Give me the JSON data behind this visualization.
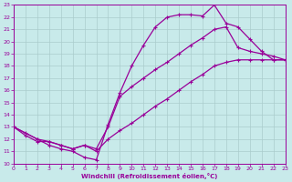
{
  "xlabel": "Windchill (Refroidissement éolien,°C)",
  "bg_color": "#c8eaea",
  "line_color": "#990099",
  "grid_color": "#aacccc",
  "xlim": [
    0,
    23
  ],
  "ylim": [
    10,
    23
  ],
  "xticks": [
    0,
    1,
    2,
    3,
    4,
    5,
    6,
    7,
    8,
    9,
    10,
    11,
    12,
    13,
    14,
    15,
    16,
    17,
    18,
    19,
    20,
    21,
    22,
    23
  ],
  "yticks": [
    10,
    11,
    12,
    13,
    14,
    15,
    16,
    17,
    18,
    19,
    20,
    21,
    22,
    23
  ],
  "curve1_x": [
    0,
    1,
    2,
    3,
    4,
    5,
    6,
    7,
    8,
    9,
    10,
    11,
    12,
    13,
    14,
    15,
    16,
    17,
    18,
    19,
    20,
    21,
    22,
    23
  ],
  "curve1_y": [
    13.0,
    12.5,
    12.0,
    11.5,
    11.2,
    11.0,
    10.5,
    10.3,
    13.2,
    15.8,
    18.0,
    19.7,
    21.2,
    22.0,
    22.2,
    22.2,
    22.1,
    23.0,
    21.5,
    21.2,
    20.2,
    19.2,
    18.5,
    18.5
  ],
  "curve2_x": [
    0,
    1,
    2,
    3,
    4,
    5,
    6,
    7,
    8,
    9,
    10,
    11,
    12,
    13,
    14,
    15,
    16,
    17,
    18,
    19,
    20,
    21,
    22,
    23
  ],
  "curve2_y": [
    13.0,
    12.3,
    11.8,
    11.8,
    11.5,
    11.2,
    11.5,
    11.0,
    12.0,
    12.7,
    13.3,
    14.0,
    14.7,
    15.3,
    16.0,
    16.7,
    17.3,
    18.0,
    18.3,
    18.5,
    18.5,
    18.5,
    18.5,
    18.5
  ],
  "curve3_x": [
    0,
    2,
    3,
    4,
    5,
    6,
    7,
    8,
    9,
    10,
    11,
    12,
    13,
    14,
    15,
    16,
    17,
    18,
    19,
    20,
    21,
    22,
    23
  ],
  "curve3_y": [
    13.0,
    12.0,
    11.8,
    11.5,
    11.2,
    11.5,
    11.2,
    13.0,
    15.5,
    16.3,
    17.0,
    17.7,
    18.3,
    19.0,
    19.7,
    20.3,
    21.0,
    21.2,
    19.5,
    19.2,
    19.0,
    18.8,
    18.5
  ]
}
